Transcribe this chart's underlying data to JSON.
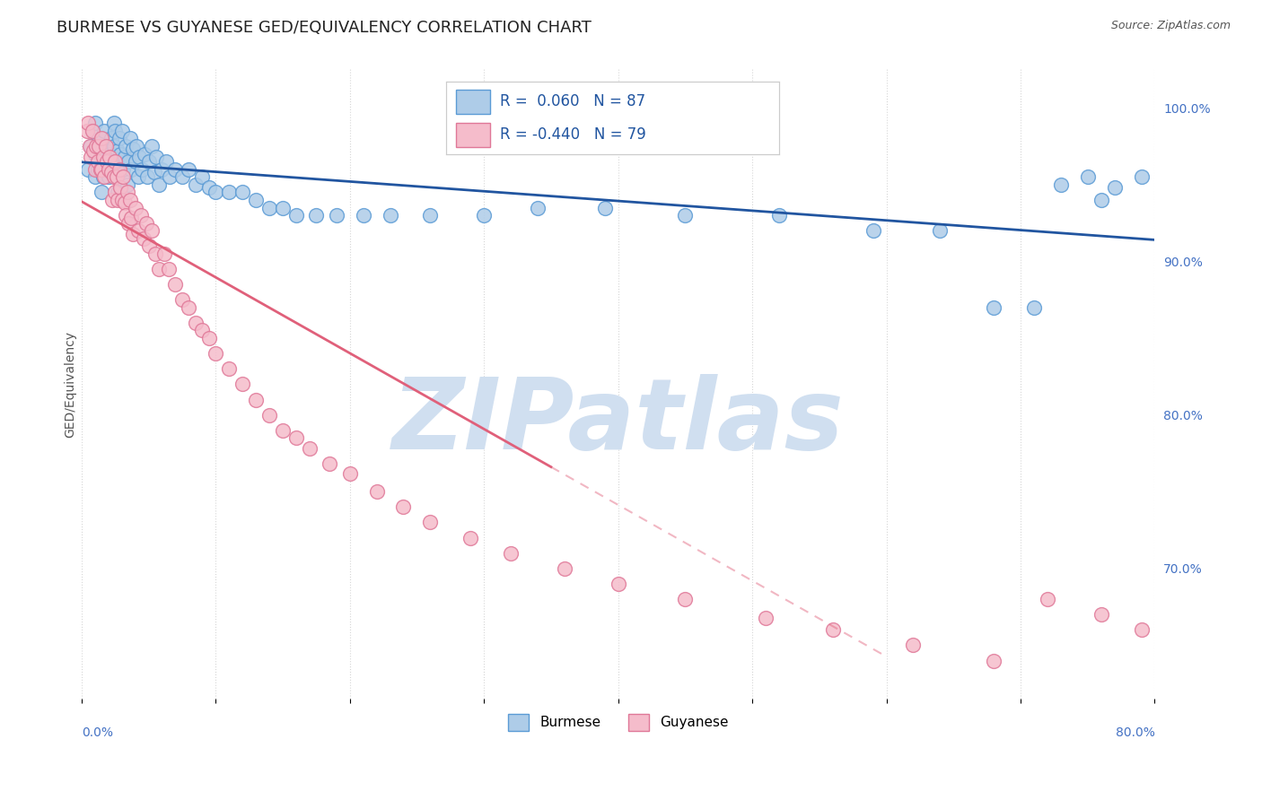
{
  "title": "BURMESE VS GUYANESE GED/EQUIVALENCY CORRELATION CHART",
  "source": "Source: ZipAtlas.com",
  "ylabel": "GED/Equivalency",
  "ytick_labels": [
    "100.0%",
    "90.0%",
    "80.0%",
    "70.0%"
  ],
  "ytick_values": [
    1.0,
    0.9,
    0.8,
    0.7
  ],
  "xlim": [
    0.0,
    0.8
  ],
  "ylim": [
    0.615,
    1.025
  ],
  "burmese_R": 0.06,
  "burmese_N": 87,
  "guyanese_R": -0.44,
  "guyanese_N": 79,
  "burmese_color": "#aecce8",
  "burmese_edge_color": "#5b9bd5",
  "guyanese_color": "#f5bccb",
  "guyanese_edge_color": "#e07898",
  "trend_burmese_color": "#2155a0",
  "trend_guyanese_color": "#e0607a",
  "watermark_color": "#d0dff0",
  "background_color": "#ffffff",
  "grid_color": "#cccccc",
  "title_fontsize": 13,
  "burmese_x": [
    0.005,
    0.007,
    0.008,
    0.01,
    0.01,
    0.01,
    0.012,
    0.013,
    0.014,
    0.015,
    0.015,
    0.016,
    0.017,
    0.017,
    0.018,
    0.019,
    0.02,
    0.021,
    0.022,
    0.022,
    0.023,
    0.024,
    0.024,
    0.025,
    0.025,
    0.026,
    0.027,
    0.027,
    0.028,
    0.028,
    0.029,
    0.03,
    0.031,
    0.032,
    0.033,
    0.034,
    0.035,
    0.036,
    0.037,
    0.038,
    0.04,
    0.041,
    0.042,
    0.043,
    0.045,
    0.047,
    0.049,
    0.05,
    0.052,
    0.054,
    0.056,
    0.058,
    0.06,
    0.063,
    0.066,
    0.07,
    0.075,
    0.08,
    0.085,
    0.09,
    0.095,
    0.1,
    0.11,
    0.12,
    0.13,
    0.14,
    0.15,
    0.16,
    0.175,
    0.19,
    0.21,
    0.23,
    0.26,
    0.3,
    0.34,
    0.39,
    0.45,
    0.52,
    0.59,
    0.64,
    0.68,
    0.71,
    0.73,
    0.75,
    0.76,
    0.77,
    0.79
  ],
  "burmese_y": [
    0.96,
    0.975,
    0.985,
    0.955,
    0.97,
    0.99,
    0.96,
    0.975,
    0.965,
    0.945,
    0.98,
    0.955,
    0.968,
    0.985,
    0.96,
    0.975,
    0.955,
    0.97,
    0.98,
    0.96,
    0.968,
    0.99,
    0.975,
    0.955,
    0.985,
    0.963,
    0.972,
    0.945,
    0.96,
    0.98,
    0.97,
    0.985,
    0.96,
    0.968,
    0.975,
    0.95,
    0.965,
    0.98,
    0.96,
    0.973,
    0.965,
    0.975,
    0.955,
    0.968,
    0.96,
    0.97,
    0.955,
    0.965,
    0.975,
    0.958,
    0.968,
    0.95,
    0.96,
    0.965,
    0.955,
    0.96,
    0.955,
    0.96,
    0.95,
    0.955,
    0.948,
    0.945,
    0.945,
    0.945,
    0.94,
    0.935,
    0.935,
    0.93,
    0.93,
    0.93,
    0.93,
    0.93,
    0.93,
    0.93,
    0.935,
    0.935,
    0.93,
    0.93,
    0.92,
    0.92,
    0.87,
    0.87,
    0.95,
    0.955,
    0.94,
    0.948,
    0.955
  ],
  "guyanese_x": [
    0.004,
    0.005,
    0.006,
    0.007,
    0.008,
    0.009,
    0.01,
    0.011,
    0.012,
    0.013,
    0.014,
    0.015,
    0.015,
    0.016,
    0.017,
    0.018,
    0.019,
    0.02,
    0.021,
    0.022,
    0.023,
    0.024,
    0.025,
    0.025,
    0.026,
    0.027,
    0.028,
    0.029,
    0.03,
    0.031,
    0.032,
    0.033,
    0.034,
    0.035,
    0.036,
    0.037,
    0.038,
    0.04,
    0.042,
    0.044,
    0.046,
    0.048,
    0.05,
    0.052,
    0.055,
    0.058,
    0.062,
    0.065,
    0.07,
    0.075,
    0.08,
    0.085,
    0.09,
    0.095,
    0.1,
    0.11,
    0.12,
    0.13,
    0.14,
    0.15,
    0.16,
    0.17,
    0.185,
    0.2,
    0.22,
    0.24,
    0.26,
    0.29,
    0.32,
    0.36,
    0.4,
    0.45,
    0.51,
    0.56,
    0.62,
    0.68,
    0.72,
    0.76,
    0.79
  ],
  "guyanese_y": [
    0.985,
    0.99,
    0.975,
    0.968,
    0.985,
    0.972,
    0.96,
    0.975,
    0.965,
    0.975,
    0.96,
    0.98,
    0.96,
    0.968,
    0.955,
    0.975,
    0.965,
    0.96,
    0.968,
    0.958,
    0.94,
    0.955,
    0.965,
    0.945,
    0.955,
    0.94,
    0.96,
    0.948,
    0.94,
    0.955,
    0.938,
    0.93,
    0.945,
    0.925,
    0.94,
    0.928,
    0.918,
    0.935,
    0.92,
    0.93,
    0.915,
    0.925,
    0.91,
    0.92,
    0.905,
    0.895,
    0.905,
    0.895,
    0.885,
    0.875,
    0.87,
    0.86,
    0.855,
    0.85,
    0.84,
    0.83,
    0.82,
    0.81,
    0.8,
    0.79,
    0.785,
    0.778,
    0.768,
    0.762,
    0.75,
    0.74,
    0.73,
    0.72,
    0.71,
    0.7,
    0.69,
    0.68,
    0.668,
    0.66,
    0.65,
    0.64,
    0.68,
    0.67,
    0.66
  ]
}
